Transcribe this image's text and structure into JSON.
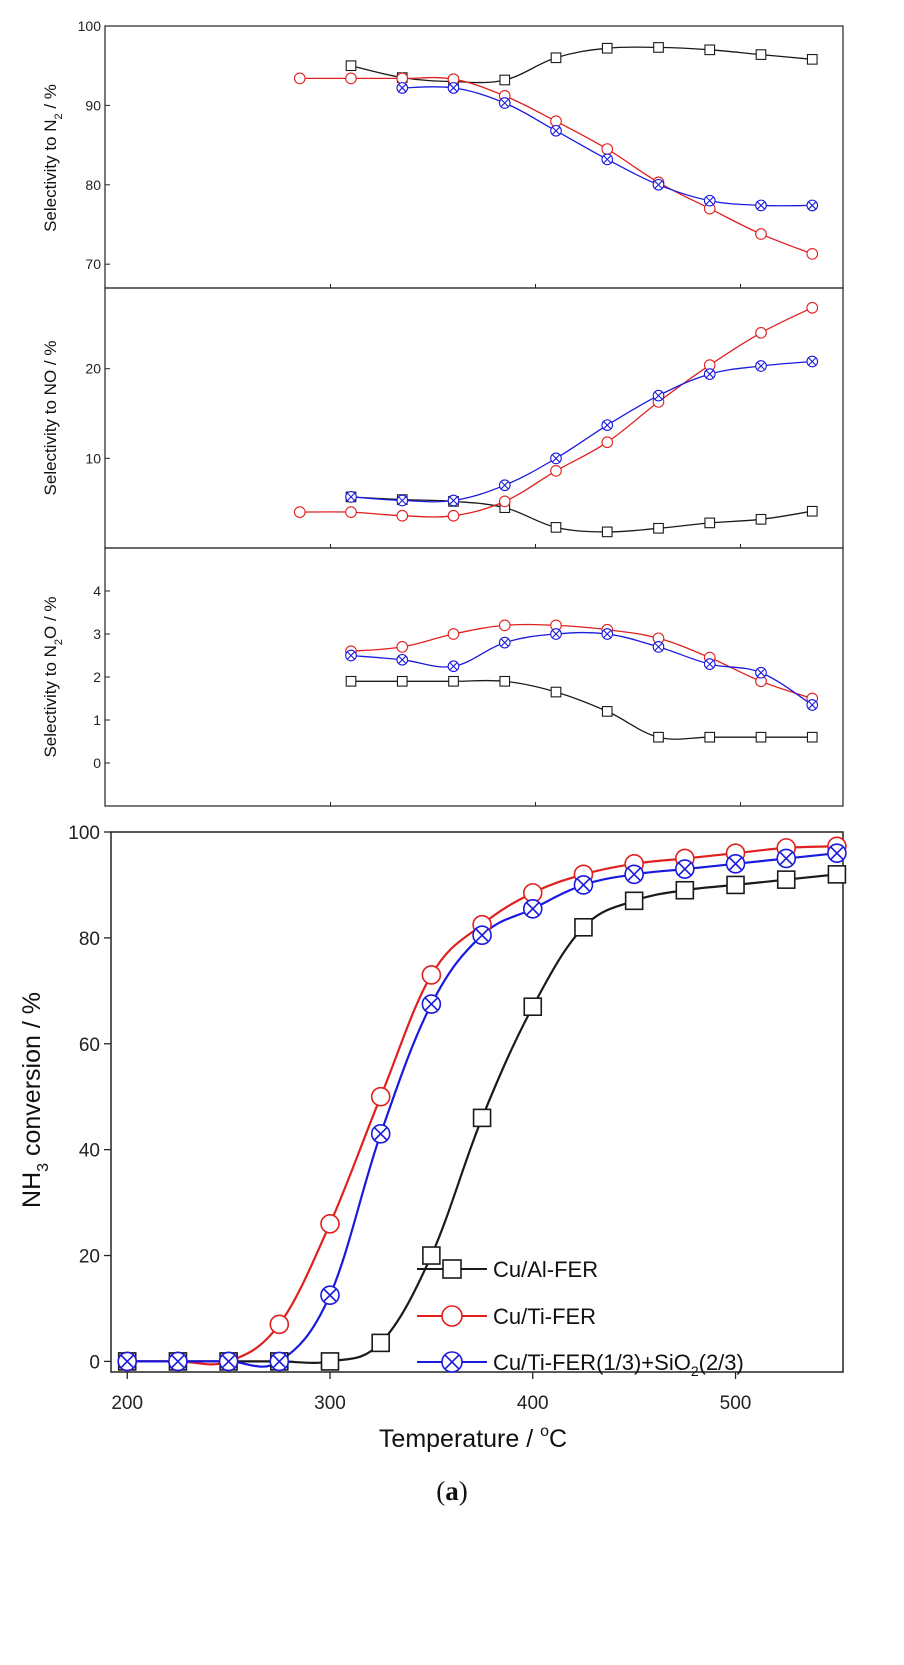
{
  "caption": {
    "open": "(",
    "letter": "a",
    "close": ")"
  },
  "colors": {
    "s0": "#1a1a1a",
    "s1": "#e0201e",
    "s2": "#1a1adf"
  },
  "chart_data": [
    {
      "id": "n2",
      "type": "line",
      "ylabel": {
        "pre": "Selectivity to N",
        "sub": "2",
        "post": " / %"
      },
      "ylim": [
        67,
        100
      ],
      "yticks": [
        70,
        80,
        90,
        100
      ],
      "xlim": [
        190,
        550
      ],
      "series": [
        {
          "name": "Cu/Al-FER",
          "x": [
            310,
            335,
            360,
            385,
            410,
            435,
            460,
            485,
            510,
            535
          ],
          "y": [
            95,
            93.5,
            93,
            93.2,
            96,
            97.2,
            97.3,
            97,
            96.4,
            95.8
          ]
        },
        {
          "name": "Cu/Ti-FER",
          "x": [
            285,
            310,
            335,
            360,
            385,
            410,
            435,
            460,
            485,
            510,
            535
          ],
          "y": [
            93.4,
            93.4,
            93.4,
            93.3,
            91.2,
            88,
            84.5,
            80.3,
            77,
            73.8,
            71.3
          ]
        },
        {
          "name": "Cu/Ti-FER(1/3)+SiO2(2/3)",
          "x": [
            335,
            360,
            385,
            410,
            435,
            460,
            485,
            510,
            535
          ],
          "y": [
            92.2,
            92.2,
            90.3,
            86.8,
            83.2,
            80,
            78,
            77.4,
            77.4
          ]
        }
      ]
    },
    {
      "id": "no",
      "type": "line",
      "ylabel": {
        "pre": "Selectivity to NO / %",
        "sub": "",
        "post": ""
      },
      "ylim": [
        0,
        29
      ],
      "yticks": [
        10,
        20
      ],
      "xlim": [
        190,
        550
      ],
      "series": [
        {
          "name": "Cu/Al-FER",
          "x": [
            310,
            335,
            360,
            385,
            410,
            435,
            460,
            485,
            510,
            535
          ],
          "y": [
            5.7,
            5.4,
            5.2,
            4.5,
            2.3,
            1.8,
            2.2,
            2.8,
            3.2,
            4.1
          ]
        },
        {
          "name": "Cu/Ti-FER",
          "x": [
            285,
            310,
            335,
            360,
            385,
            410,
            435,
            460,
            485,
            510,
            535
          ],
          "y": [
            4,
            4,
            3.6,
            3.6,
            5.2,
            8.6,
            11.8,
            16.3,
            20.4,
            24,
            26.8
          ]
        },
        {
          "name": "Cu/Ti-FER(1/3)+SiO2(2/3)",
          "x": [
            310,
            335,
            360,
            385,
            410,
            435,
            460,
            485,
            510,
            535
          ],
          "y": [
            5.7,
            5.3,
            5.3,
            7,
            10,
            13.7,
            17,
            19.4,
            20.3,
            20.8
          ]
        }
      ]
    },
    {
      "id": "n2o",
      "type": "line",
      "ylabel": {
        "pre": "Selectivity to N",
        "sub": "2",
        "post": "O / %"
      },
      "ylim": [
        -1,
        5
      ],
      "yticks": [
        0,
        1,
        2,
        3,
        4
      ],
      "xlim": [
        190,
        550
      ],
      "series": [
        {
          "name": "Cu/Al-FER",
          "x": [
            310,
            335,
            360,
            385,
            410,
            435,
            460,
            485,
            510,
            535
          ],
          "y": [
            1.9,
            1.9,
            1.9,
            1.9,
            1.65,
            1.2,
            0.6,
            0.6,
            0.6,
            0.6
          ]
        },
        {
          "name": "Cu/Ti-FER",
          "x": [
            310,
            335,
            360,
            385,
            410,
            435,
            460,
            485,
            510,
            535
          ],
          "y": [
            2.6,
            2.7,
            3,
            3.2,
            3.2,
            3.1,
            2.9,
            2.45,
            1.9,
            1.5
          ]
        },
        {
          "name": "Cu/Ti-FER(1/3)+SiO2(2/3)",
          "x": [
            310,
            335,
            360,
            385,
            410,
            435,
            460,
            485,
            510,
            535
          ],
          "y": [
            2.5,
            2.4,
            2.25,
            2.8,
            3,
            3,
            2.7,
            2.3,
            2.1,
            1.35
          ]
        }
      ]
    },
    {
      "id": "nh3",
      "type": "line",
      "ylabel": {
        "pre": "NH",
        "sub": "3",
        "post": " conversion / %"
      },
      "xlabel": {
        "pre": "Temperature / ",
        "sup": "o",
        "post": "C"
      },
      "ylim": [
        -2,
        100
      ],
      "yticks": [
        0,
        20,
        40,
        60,
        80,
        100
      ],
      "xlim": [
        192,
        553
      ],
      "xticks": [
        200,
        300,
        400,
        500
      ],
      "legend_position": "bottom-right",
      "series": [
        {
          "name": "Cu/Al-FER",
          "x": [
            200,
            225,
            250,
            275,
            300,
            325,
            350,
            375,
            400,
            425,
            450,
            475,
            500,
            525,
            550
          ],
          "y": [
            0,
            0,
            0,
            0,
            0,
            3.5,
            20,
            46,
            67,
            82,
            87,
            89,
            90,
            91,
            92
          ]
        },
        {
          "name": "Cu/Ti-FER",
          "x": [
            200,
            225,
            250,
            275,
            300,
            325,
            350,
            375,
            400,
            425,
            450,
            475,
            500,
            525,
            550
          ],
          "y": [
            0,
            0,
            0,
            7,
            26,
            50,
            73,
            82.5,
            88.5,
            92,
            94,
            95,
            96,
            97,
            97.3
          ]
        },
        {
          "name": "Cu/Ti-FER(1/3)+SiO2(2/3)",
          "x": [
            200,
            225,
            250,
            275,
            300,
            325,
            350,
            375,
            400,
            425,
            450,
            475,
            500,
            525,
            550
          ],
          "y": [
            0,
            0,
            0,
            0,
            12.5,
            43,
            67.5,
            80.5,
            85.5,
            90,
            92,
            93,
            94,
            95,
            96
          ]
        }
      ],
      "legend": [
        {
          "label": "Cu/Al-FER"
        },
        {
          "label": "Cu/Ti-FER"
        },
        {
          "label_pre": "Cu/Ti-FER(1/3)+SiO",
          "label_sub": "2",
          "label_post": "(2/3)"
        }
      ]
    }
  ]
}
